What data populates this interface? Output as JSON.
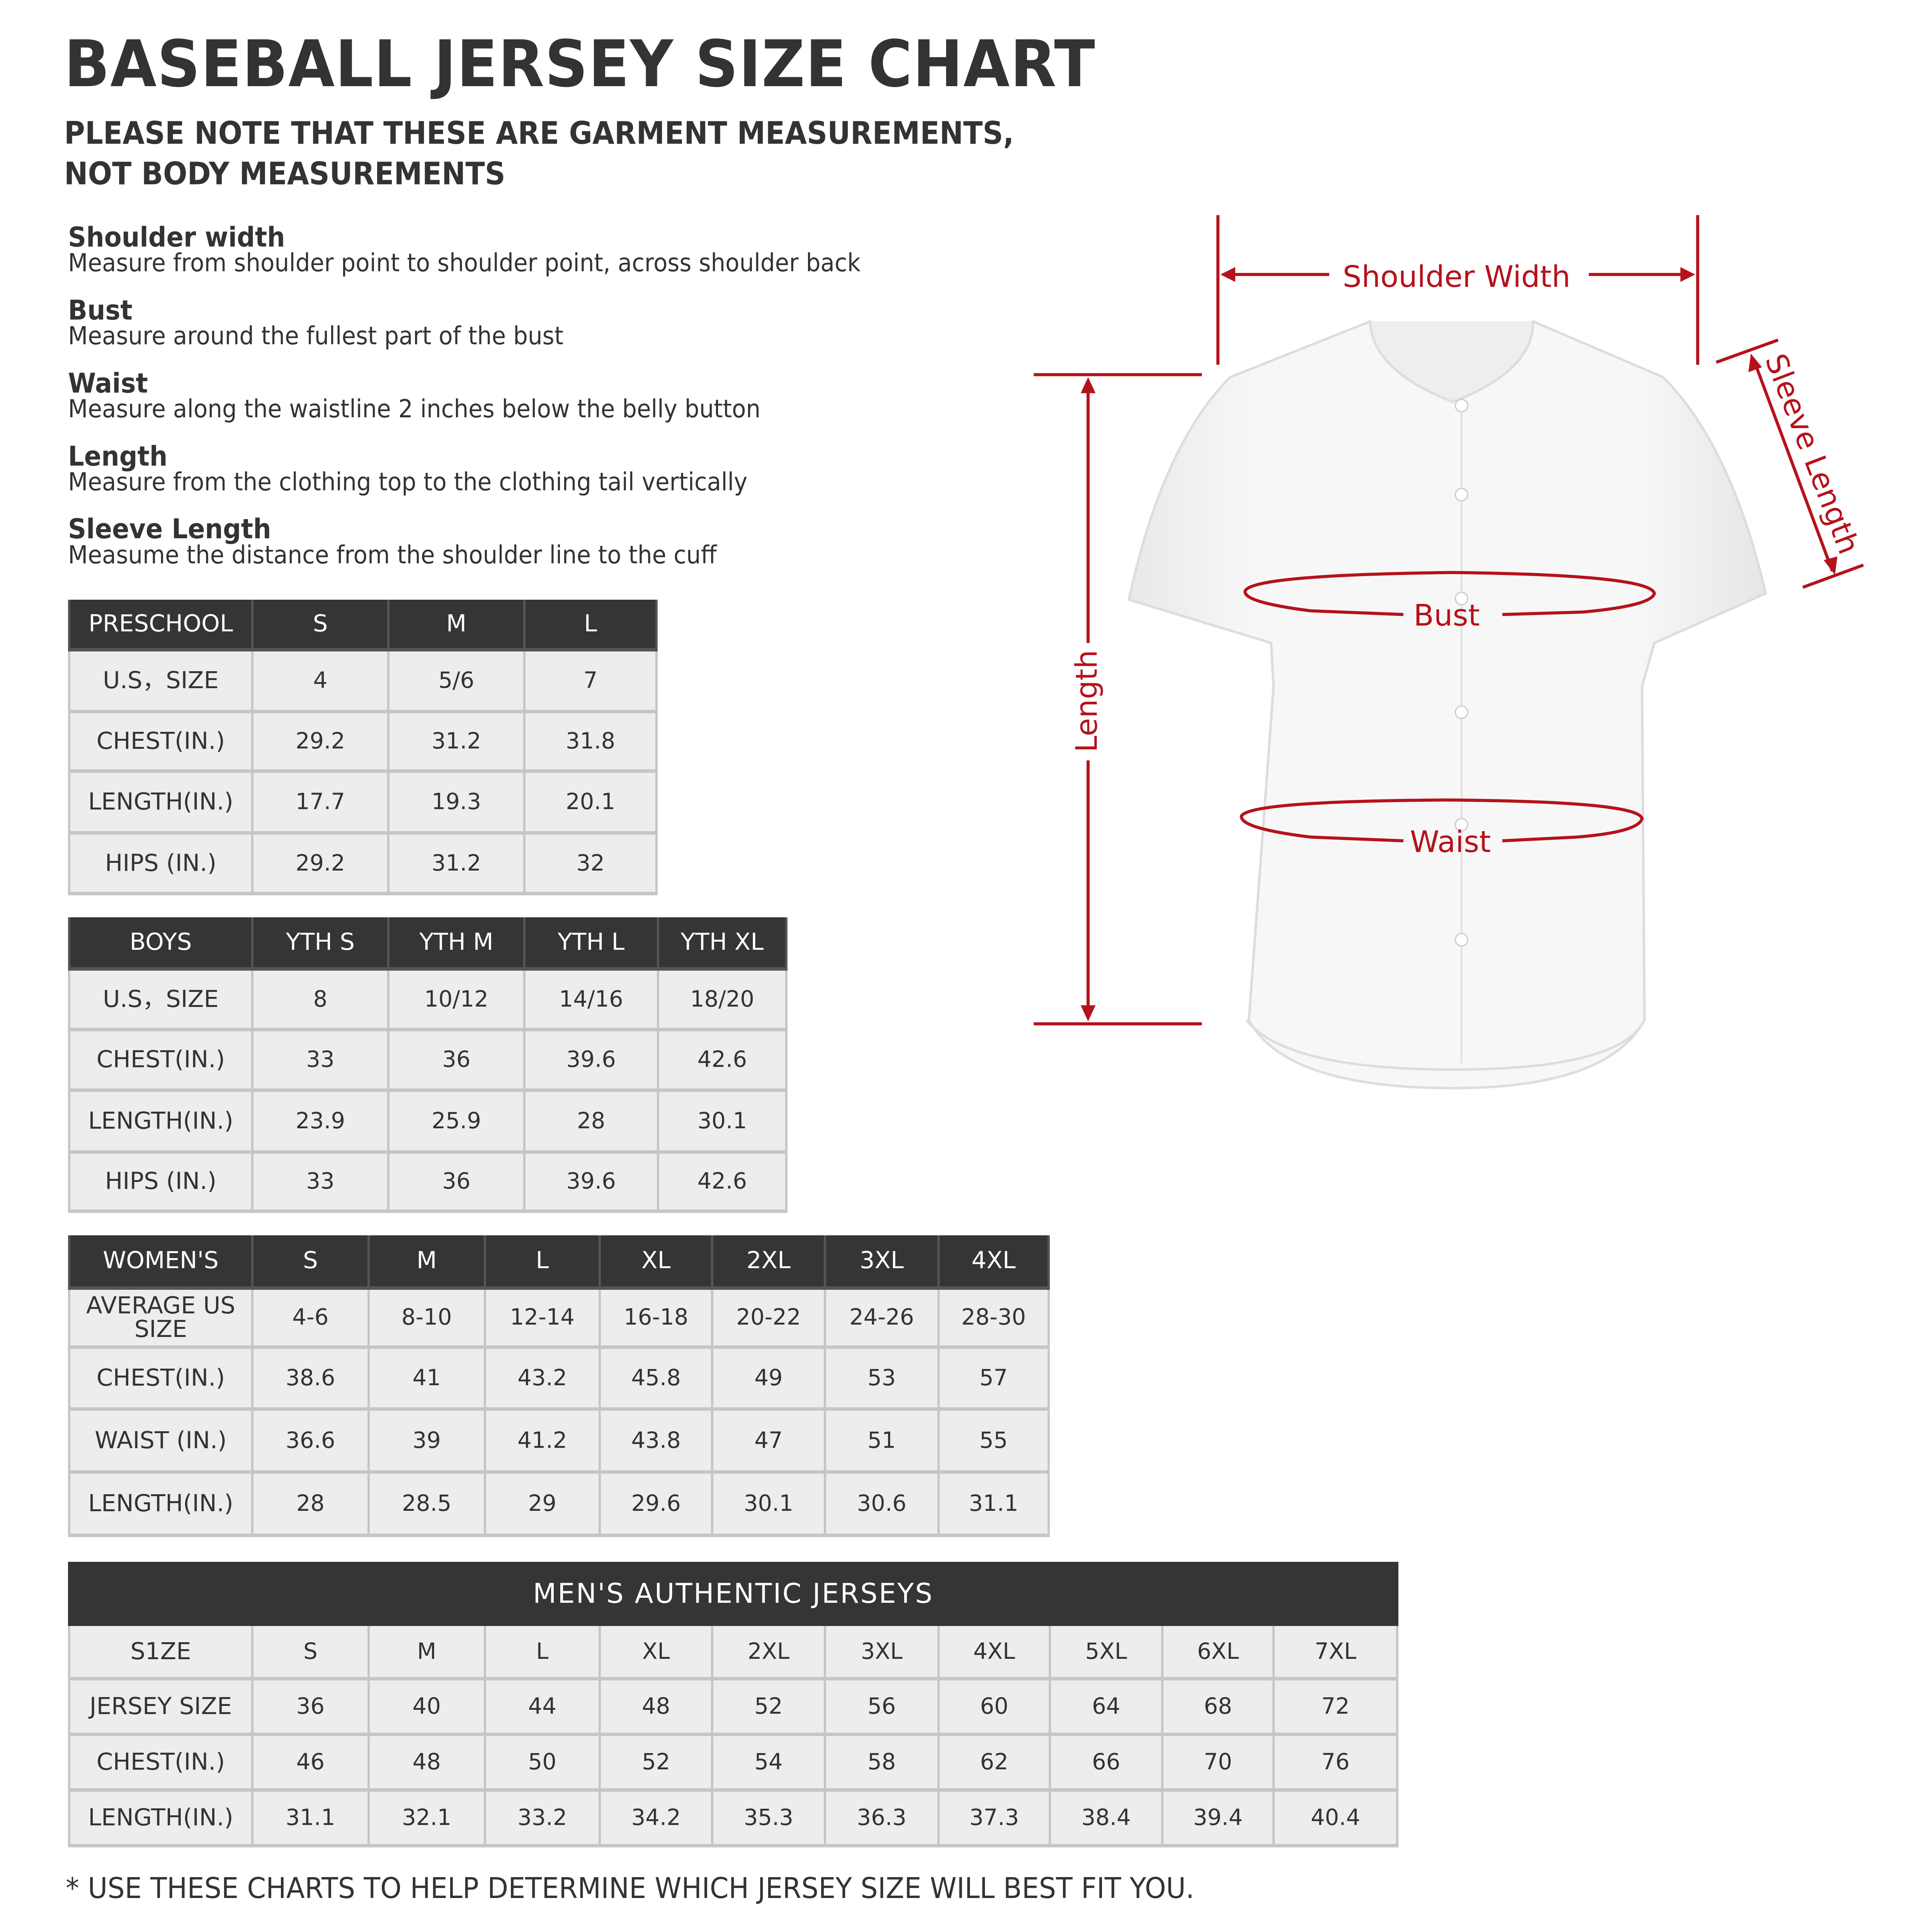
{
  "title": "BASEBALL JERSEY SIZE CHART",
  "subtitle_line1": "PLEASE NOTE THAT THESE ARE GARMENT MEASUREMENTS,",
  "subtitle_line2": "NOT BODY MEASUREMENTS",
  "definitions": [
    {
      "term": "Shoulder width",
      "desc": "Measure from shoulder point to shoulder point, across shoulder back"
    },
    {
      "term": "Bust",
      "desc": "Measure around the fullest part of the bust"
    },
    {
      "term": "Waist",
      "desc": "Measure along the waistline 2 inches below the belly button"
    },
    {
      "term": "Length",
      "desc": "Measure from the clothing top to the clothing tail vertically"
    },
    {
      "term": "Sleeve Length",
      "desc": "Measume the distance from the shoulder line to the cuff"
    }
  ],
  "diagram": {
    "shoulder_width": "Shoulder Width",
    "sleeve_length": "Sleeve Length",
    "bust": "Bust",
    "waist": "Waist",
    "length": "Length",
    "accent_color": "#b5121b"
  },
  "tables": {
    "preschool": {
      "header": [
        "PRESCHOOL",
        "S",
        "M",
        "L"
      ],
      "rows": [
        [
          "U.S，SIZE",
          "4",
          "5/6",
          "7"
        ],
        [
          "CHEST(IN.)",
          "29.2",
          "31.2",
          "31.8"
        ],
        [
          "LENGTH(IN.)",
          "17.7",
          "19.3",
          "20.1"
        ],
        [
          "HIPS (IN.)",
          "29.2",
          "31.2",
          "32"
        ]
      ]
    },
    "boys": {
      "header": [
        "BOYS",
        "YTH S",
        "YTH M",
        "YTH L",
        "YTH XL"
      ],
      "rows": [
        [
          "U.S，SIZE",
          "8",
          "10/12",
          "14/16",
          "18/20"
        ],
        [
          "CHEST(IN.)",
          "33",
          "36",
          "39.6",
          "42.6"
        ],
        [
          "LENGTH(IN.)",
          "23.9",
          "25.9",
          "28",
          "30.1"
        ],
        [
          "HIPS (IN.)",
          "33",
          "36",
          "39.6",
          "42.6"
        ]
      ]
    },
    "womens": {
      "header": [
        "WOMEN'S",
        "S",
        "M",
        "L",
        "XL",
        "2XL",
        "3XL",
        "4XL"
      ],
      "rows": [
        [
          "AVERAGE US SIZE",
          "4-6",
          "8-10",
          "12-14",
          "16-18",
          "20-22",
          "24-26",
          "28-30"
        ],
        [
          "CHEST(IN.)",
          "38.6",
          "41",
          "43.2",
          "45.8",
          "49",
          "53",
          "57"
        ],
        [
          "WAIST (IN.)",
          "36.6",
          "39",
          "41.2",
          "43.8",
          "47",
          "51",
          "55"
        ],
        [
          "LENGTH(IN.)",
          "28",
          "28.5",
          "29",
          "29.6",
          "30.1",
          "30.6",
          "31.1"
        ]
      ]
    },
    "mens": {
      "title": "MEN'S AUTHENTIC JERSEYS",
      "rows": [
        [
          "S1ZE",
          "S",
          "M",
          "L",
          "XL",
          "2XL",
          "3XL",
          "4XL",
          "5XL",
          "6XL",
          "7XL"
        ],
        [
          "JERSEY SIZE",
          "36",
          "40",
          "44",
          "48",
          "52",
          "56",
          "60",
          "64",
          "68",
          "72"
        ],
        [
          "CHEST(IN.)",
          "46",
          "48",
          "50",
          "52",
          "54",
          "58",
          "62",
          "66",
          "70",
          "76"
        ],
        [
          "LENGTH(IN.)",
          "31.1",
          "32.1",
          "33.2",
          "34.2",
          "35.3",
          "36.3",
          "37.3",
          "38.4",
          "39.4",
          "40.4"
        ]
      ]
    }
  },
  "footnote": "* USE THESE CHARTS TO HELP DETERMINE WHICH JERSEY SIZE WILL BEST FIT YOU."
}
